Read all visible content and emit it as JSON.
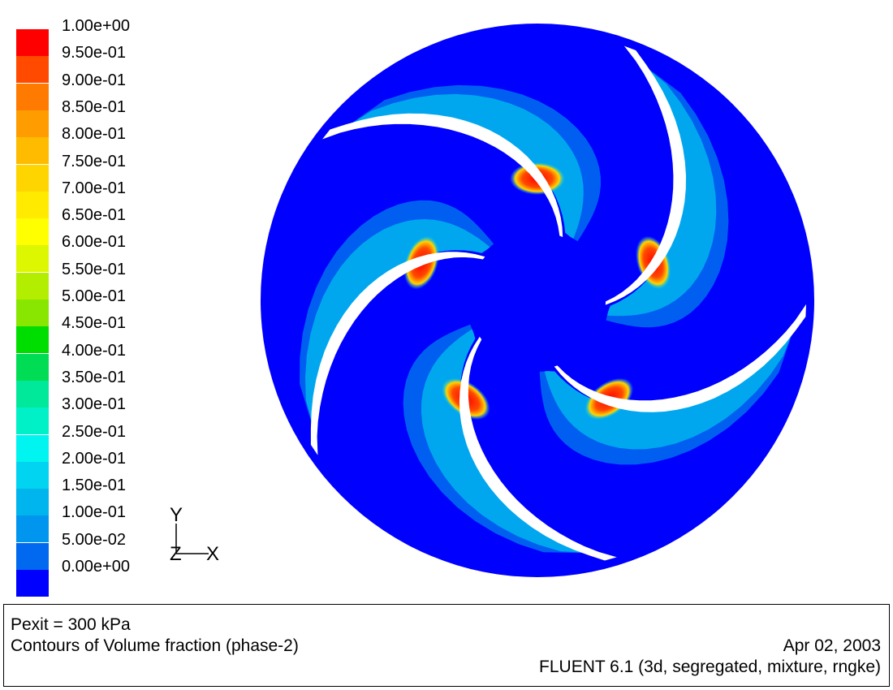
{
  "legend": {
    "labels": [
      "1.00e+00",
      "9.50e-01",
      "9.00e-01",
      "8.50e-01",
      "8.00e-01",
      "7.50e-01",
      "7.00e-01",
      "6.50e-01",
      "6.00e-01",
      "5.50e-01",
      "5.00e-01",
      "4.50e-01",
      "4.00e-01",
      "3.50e-01",
      "3.00e-01",
      "2.50e-01",
      "2.00e-01",
      "1.50e-01",
      "1.00e-01",
      "5.00e-02",
      "0.00e+00"
    ],
    "colors": [
      "#ff0000",
      "#ff4a00",
      "#ff7a00",
      "#ff9c00",
      "#ffbb00",
      "#ffd500",
      "#ffea00",
      "#ffff00",
      "#ddf700",
      "#b3ee00",
      "#88e600",
      "#00dd00",
      "#00dd55",
      "#00e89a",
      "#00f0c8",
      "#00f5f0",
      "#00d4f0",
      "#00b4ee",
      "#0096ef",
      "#0069f0",
      "#0000ff"
    ]
  },
  "axes": {
    "y_label": "Y",
    "z_label": "Z",
    "x_label": "X"
  },
  "info": {
    "line1": "Pexit = 300 kPa",
    "line2": "Contours of Volume fraction (phase-2)",
    "date": "Apr 02, 2003",
    "solver": "FLUENT 6.1 (3d, segregated, mixture, rngke)"
  },
  "colors": {
    "background": "#0000ff",
    "low": "#0069f0",
    "mid": "#00b4ee",
    "high": "#ff0000",
    "blade": "#ffffff"
  },
  "blade_count": 5
}
